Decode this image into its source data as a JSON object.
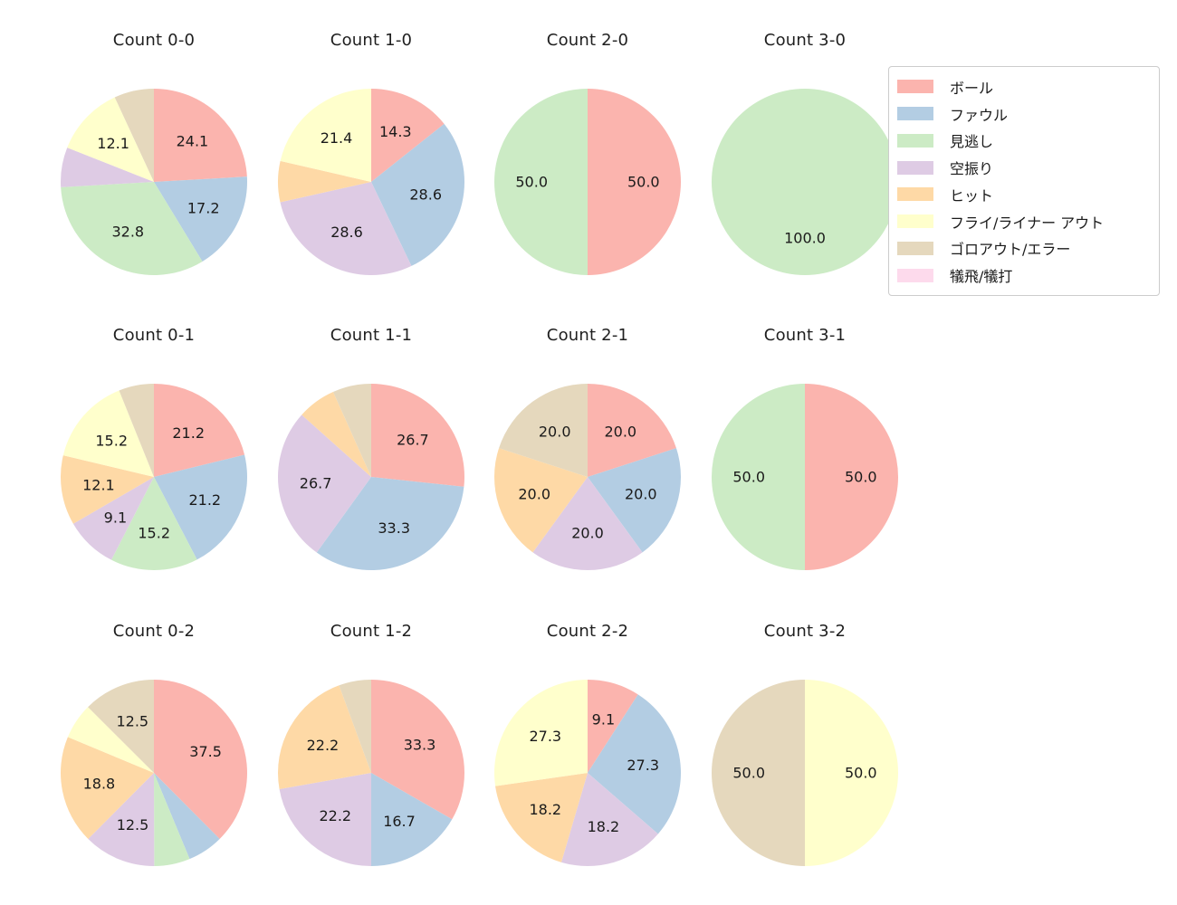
{
  "page": {
    "background": "#ffffff"
  },
  "legend": {
    "items": [
      {
        "label": "ボール",
        "color": "#fbb4ae"
      },
      {
        "label": "ファウル",
        "color": "#b3cde3"
      },
      {
        "label": "見逃し",
        "color": "#ccebc5"
      },
      {
        "label": "空振り",
        "color": "#decbe4"
      },
      {
        "label": "ヒット",
        "color": "#fed9a6"
      },
      {
        "label": "フライ/ライナー アウト",
        "color": "#ffffcc"
      },
      {
        "label": "ゴロアウト/エラー",
        "color": "#e5d8bd"
      },
      {
        "label": "犠飛/犠打",
        "color": "#fddaec"
      }
    ]
  },
  "chart_data": [
    {
      "type": "pie",
      "title": "Count 0-0",
      "start_angle_deg": 90,
      "direction": "clockwise",
      "label_distance": 0.6,
      "slices": [
        {
          "category": "ボール",
          "value": 24.1,
          "label": "24.1"
        },
        {
          "category": "ファウル",
          "value": 17.2,
          "label": "17.2"
        },
        {
          "category": "見逃し",
          "value": 32.8,
          "label": "32.8"
        },
        {
          "category": "空振り",
          "value": 6.9,
          "label": ""
        },
        {
          "category": "フライ/ライナー アウト",
          "value": 12.1,
          "label": "12.1"
        },
        {
          "category": "ゴロアウト/エラー",
          "value": 6.9,
          "label": ""
        }
      ]
    },
    {
      "type": "pie",
      "title": "Count 1-0",
      "start_angle_deg": 90,
      "direction": "clockwise",
      "label_distance": 0.6,
      "slices": [
        {
          "category": "ボール",
          "value": 14.3,
          "label": "14.3"
        },
        {
          "category": "ファウル",
          "value": 28.6,
          "label": "28.6"
        },
        {
          "category": "空振り",
          "value": 28.6,
          "label": "28.6"
        },
        {
          "category": "ヒット",
          "value": 7.1,
          "label": ""
        },
        {
          "category": "フライ/ライナー アウト",
          "value": 21.4,
          "label": "21.4"
        }
      ]
    },
    {
      "type": "pie",
      "title": "Count 2-0",
      "start_angle_deg": 90,
      "direction": "clockwise",
      "label_distance": 0.6,
      "slices": [
        {
          "category": "ボール",
          "value": 50.0,
          "label": "50.0"
        },
        {
          "category": "見逃し",
          "value": 50.0,
          "label": "50.0"
        }
      ]
    },
    {
      "type": "pie",
      "title": "Count 3-0",
      "start_angle_deg": 90,
      "direction": "clockwise",
      "label_distance": 0.6,
      "slices": [
        {
          "category": "見逃し",
          "value": 100.0,
          "label": "100.0"
        }
      ]
    },
    {
      "type": "pie",
      "title": "Count 0-1",
      "start_angle_deg": 90,
      "direction": "clockwise",
      "label_distance": 0.6,
      "slices": [
        {
          "category": "ボール",
          "value": 21.2,
          "label": "21.2"
        },
        {
          "category": "ファウル",
          "value": 21.2,
          "label": "21.2"
        },
        {
          "category": "見逃し",
          "value": 15.2,
          "label": "15.2"
        },
        {
          "category": "空振り",
          "value": 9.1,
          "label": "9.1"
        },
        {
          "category": "ヒット",
          "value": 12.1,
          "label": "12.1"
        },
        {
          "category": "フライ/ライナー アウト",
          "value": 15.2,
          "label": "15.2"
        },
        {
          "category": "ゴロアウト/エラー",
          "value": 6.1,
          "label": ""
        }
      ]
    },
    {
      "type": "pie",
      "title": "Count 1-1",
      "start_angle_deg": 90,
      "direction": "clockwise",
      "label_distance": 0.6,
      "slices": [
        {
          "category": "ボール",
          "value": 26.7,
          "label": "26.7"
        },
        {
          "category": "ファウル",
          "value": 33.3,
          "label": "33.3"
        },
        {
          "category": "空振り",
          "value": 26.7,
          "label": "26.7"
        },
        {
          "category": "ヒット",
          "value": 6.7,
          "label": ""
        },
        {
          "category": "ゴロアウト/エラー",
          "value": 6.7,
          "label": ""
        }
      ]
    },
    {
      "type": "pie",
      "title": "Count 2-1",
      "start_angle_deg": 90,
      "direction": "clockwise",
      "label_distance": 0.6,
      "slices": [
        {
          "category": "ボール",
          "value": 20.0,
          "label": "20.0"
        },
        {
          "category": "ファウル",
          "value": 20.0,
          "label": "20.0"
        },
        {
          "category": "空振り",
          "value": 20.0,
          "label": "20.0"
        },
        {
          "category": "ヒット",
          "value": 20.0,
          "label": "20.0"
        },
        {
          "category": "ゴロアウト/エラー",
          "value": 20.0,
          "label": "20.0"
        }
      ]
    },
    {
      "type": "pie",
      "title": "Count 3-1",
      "start_angle_deg": 90,
      "direction": "clockwise",
      "label_distance": 0.6,
      "slices": [
        {
          "category": "ボール",
          "value": 50.0,
          "label": "50.0"
        },
        {
          "category": "見逃し",
          "value": 50.0,
          "label": "50.0"
        }
      ]
    },
    {
      "type": "pie",
      "title": "Count 0-2",
      "start_angle_deg": 90,
      "direction": "clockwise",
      "label_distance": 0.6,
      "slices": [
        {
          "category": "ボール",
          "value": 37.5,
          "label": "37.5"
        },
        {
          "category": "ファウル",
          "value": 6.2,
          "label": ""
        },
        {
          "category": "見逃し",
          "value": 6.2,
          "label": ""
        },
        {
          "category": "空振り",
          "value": 12.5,
          "label": "12.5"
        },
        {
          "category": "ヒット",
          "value": 18.8,
          "label": "18.8"
        },
        {
          "category": "フライ/ライナー アウト",
          "value": 6.2,
          "label": ""
        },
        {
          "category": "ゴロアウト/エラー",
          "value": 12.5,
          "label": "12.5"
        }
      ]
    },
    {
      "type": "pie",
      "title": "Count 1-2",
      "start_angle_deg": 90,
      "direction": "clockwise",
      "label_distance": 0.6,
      "slices": [
        {
          "category": "ボール",
          "value": 33.3,
          "label": "33.3"
        },
        {
          "category": "ファウル",
          "value": 16.7,
          "label": "16.7"
        },
        {
          "category": "空振り",
          "value": 22.2,
          "label": "22.2"
        },
        {
          "category": "ヒット",
          "value": 22.2,
          "label": "22.2"
        },
        {
          "category": "ゴロアウト/エラー",
          "value": 5.6,
          "label": ""
        }
      ]
    },
    {
      "type": "pie",
      "title": "Count 2-2",
      "start_angle_deg": 90,
      "direction": "clockwise",
      "label_distance": 0.6,
      "slices": [
        {
          "category": "ボール",
          "value": 9.1,
          "label": "9.1"
        },
        {
          "category": "ファウル",
          "value": 27.3,
          "label": "27.3"
        },
        {
          "category": "空振り",
          "value": 18.2,
          "label": "18.2"
        },
        {
          "category": "ヒット",
          "value": 18.2,
          "label": "18.2"
        },
        {
          "category": "フライ/ライナー アウト",
          "value": 27.3,
          "label": "27.3"
        }
      ]
    },
    {
      "type": "pie",
      "title": "Count 3-2",
      "start_angle_deg": 90,
      "direction": "clockwise",
      "label_distance": 0.6,
      "slices": [
        {
          "category": "フライ/ライナー アウト",
          "value": 50.0,
          "label": "50.0"
        },
        {
          "category": "ゴロアウト/エラー",
          "value": 50.0,
          "label": "50.0"
        }
      ]
    }
  ]
}
